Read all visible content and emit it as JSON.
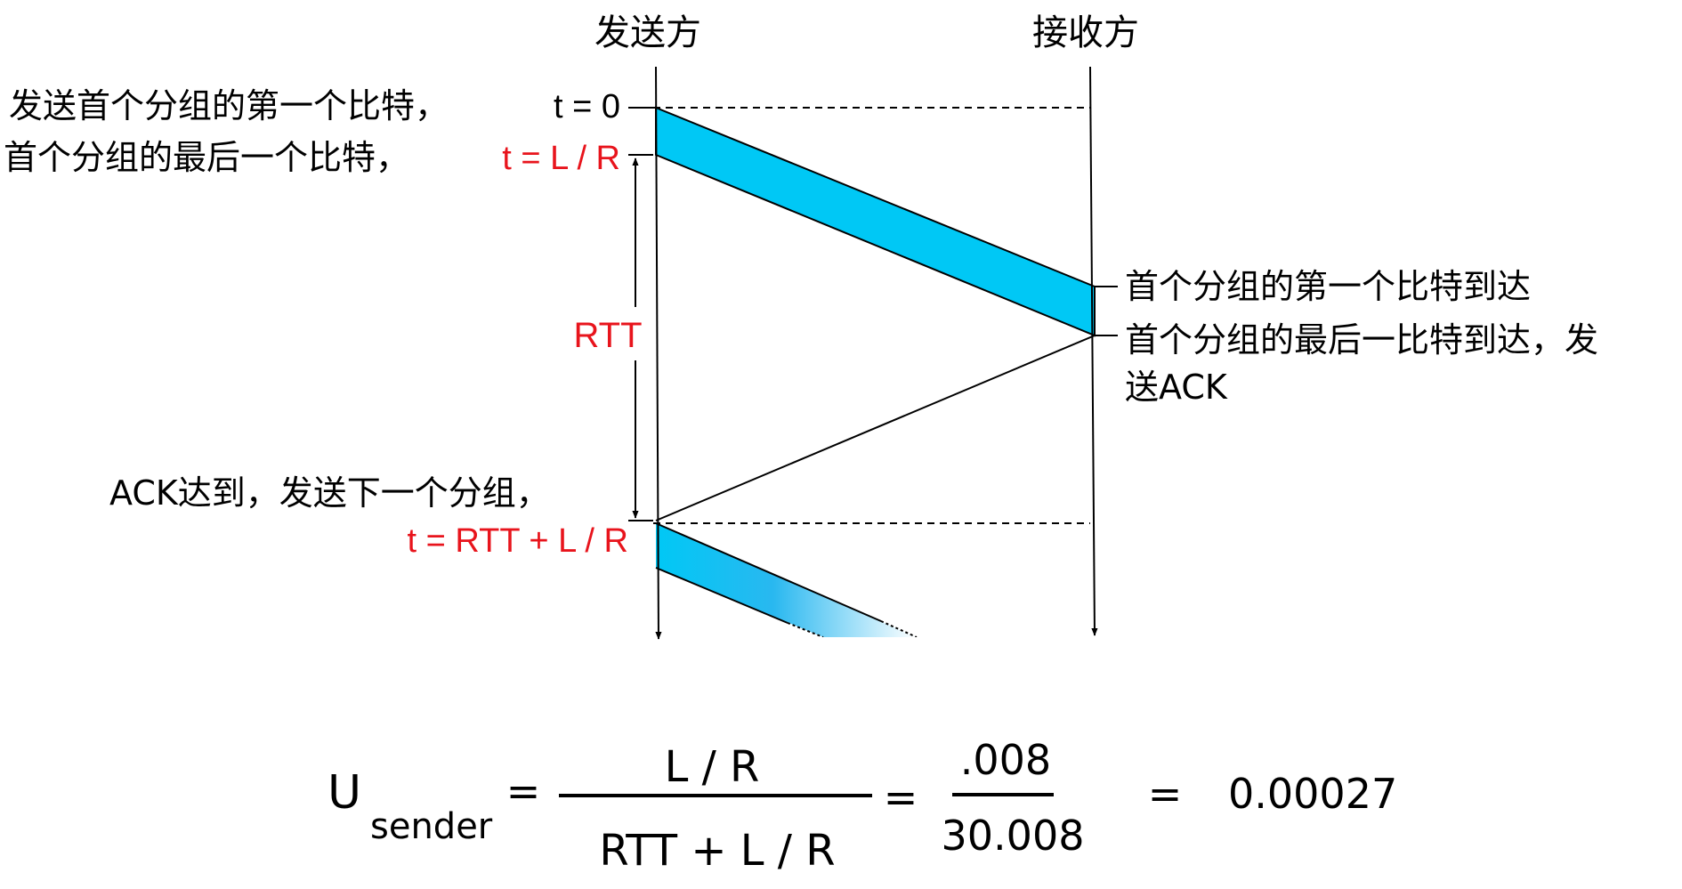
{
  "diagram": {
    "sender_header": "发送方",
    "receiver_header": "接收方",
    "label_first_bit_sent": "发送首个分组的第一个比特，",
    "label_t0": "t = 0",
    "label_last_bit_sent": "首个分组的最后一个比特，",
    "label_t_lr": "t = L / R",
    "label_rtt": "RTT",
    "label_first_bit_arrive": "首个分组的第一个比特到达",
    "label_last_bit_arrive_1": "首个分组的最后一比特到达，发",
    "label_last_bit_arrive_2": "送ACK",
    "label_ack_arrive": "ACK达到，发送下一个分组，",
    "label_t_next": "t = RTT + L / R",
    "colors": {
      "packet_fill": "#00c8f5",
      "highlight_red": "#e8141c",
      "line": "#000000"
    }
  },
  "formula": {
    "u_letter": "U",
    "u_subscript": "sender",
    "eq1": "=",
    "frac1_num": "L / R",
    "frac1_den": "RTT + L / R",
    "eq2": "=",
    "frac2_num": ".008",
    "frac2_den": "30.008",
    "eq3": "=",
    "result": "0.00027"
  }
}
